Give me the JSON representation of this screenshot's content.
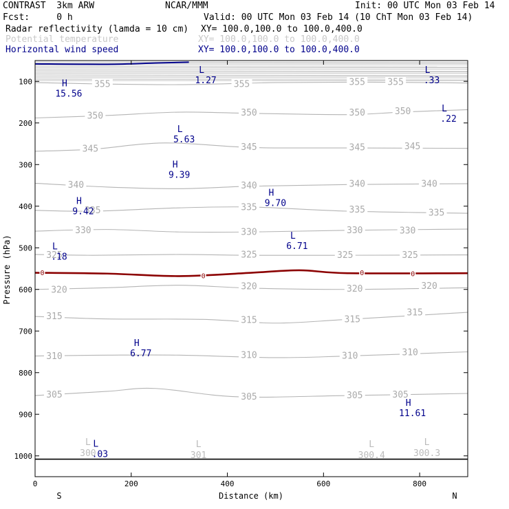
{
  "header": {
    "title": "CONTRAST  3km ARW",
    "center": "NCAR/MMM",
    "init": "Init: 00 UTC Mon 03 Feb 14",
    "fcst": "Fcst:     0 h",
    "valid": "Valid: 00 UTC Mon 03 Feb 14 (10 ChT Mon 03 Feb 14)",
    "fields": [
      {
        "name": "Radar reflectivity (lamda = 10 cm)",
        "xy": "XY= 100.0,100.0 to 100.0,400.0",
        "color": "#000000"
      },
      {
        "name": "Potential temperature",
        "xy": "XY= 100.0,100.0 to 100.0,400.0",
        "color": "#c8c8c8"
      },
      {
        "name": "Horizontal wind speed",
        "xy": "XY= 100.0,100.0 to 100.0,400.0",
        "color": "#00008b"
      }
    ]
  },
  "chart_data": {
    "type": "line",
    "subtype": "vertical cross-section contour",
    "xlabel": "Distance (km)",
    "ylabel": "Pressure (hPa)",
    "xlim": [
      0,
      900
    ],
    "ylim": [
      1050,
      50
    ],
    "x_ticks": [
      0,
      200,
      400,
      600,
      800
    ],
    "x_tick_labels": [
      "0",
      "200",
      "400",
      "600",
      "800"
    ],
    "y_ticks": [
      100,
      200,
      300,
      400,
      500,
      600,
      700,
      800,
      900,
      1000
    ],
    "y_tick_labels": [
      "100",
      "200",
      "300",
      "400",
      "500",
      "600",
      "700",
      "800",
      "900",
      "1000"
    ],
    "endpoints": {
      "left": "S",
      "right": "N"
    },
    "theta_lines": [
      {
        "label": "355",
        "points": [
          [
            0,
            103
          ],
          [
            120,
            106
          ],
          [
            300,
            108
          ],
          [
            500,
            103
          ],
          [
            700,
            102
          ],
          [
            900,
            104
          ]
        ],
        "label_pos": [
          [
            140,
            107
          ],
          [
            430,
            107
          ],
          [
            670,
            102
          ],
          [
            750,
            102
          ]
        ]
      },
      {
        "label": "350",
        "points": [
          [
            0,
            188
          ],
          [
            150,
            182
          ],
          [
            300,
            174
          ],
          [
            450,
            177
          ],
          [
            650,
            180
          ],
          [
            760,
            174
          ],
          [
            900,
            168
          ]
        ],
        "label_pos": [
          [
            125,
            183
          ],
          [
            445,
            176
          ],
          [
            670,
            176
          ],
          [
            765,
            172
          ]
        ]
      },
      {
        "label": "345",
        "points": [
          [
            0,
            268
          ],
          [
            120,
            263
          ],
          [
            270,
            248
          ],
          [
            450,
            259
          ],
          [
            650,
            260
          ],
          [
            900,
            261
          ]
        ],
        "label_pos": [
          [
            115,
            262
          ],
          [
            445,
            258
          ],
          [
            670,
            259
          ],
          [
            785,
            257
          ]
        ]
      },
      {
        "label": "340",
        "points": [
          [
            0,
            345
          ],
          [
            150,
            354
          ],
          [
            300,
            358
          ],
          [
            450,
            352
          ],
          [
            650,
            348
          ],
          [
            900,
            346
          ]
        ],
        "label_pos": [
          [
            85,
            349
          ],
          [
            445,
            351
          ],
          [
            670,
            347
          ],
          [
            820,
            347
          ]
        ]
      },
      {
        "label": "335",
        "points": [
          [
            0,
            410
          ],
          [
            120,
            412
          ],
          [
            300,
            404
          ],
          [
            450,
            402
          ],
          [
            650,
            412
          ],
          [
            900,
            417
          ]
        ],
        "label_pos": [
          [
            120,
            410
          ],
          [
            445,
            403
          ],
          [
            670,
            409
          ],
          [
            835,
            416
          ]
        ]
      },
      {
        "label": "330",
        "points": [
          [
            0,
            460
          ],
          [
            150,
            456
          ],
          [
            300,
            462
          ],
          [
            450,
            462
          ],
          [
            650,
            458
          ],
          [
            900,
            455
          ]
        ],
        "label_pos": [
          [
            100,
            458
          ],
          [
            445,
            462
          ],
          [
            665,
            458
          ],
          [
            775,
            459
          ]
        ]
      },
      {
        "label": "325",
        "points": [
          [
            0,
            516
          ],
          [
            120,
            518
          ],
          [
            300,
            516
          ],
          [
            450,
            518
          ],
          [
            650,
            518
          ],
          [
            900,
            517
          ]
        ],
        "label_pos": [
          [
            40,
            518
          ],
          [
            445,
            517
          ],
          [
            645,
            518
          ],
          [
            780,
            518
          ]
        ]
      },
      {
        "label": "320",
        "points": [
          [
            0,
            600
          ],
          [
            150,
            596
          ],
          [
            300,
            590
          ],
          [
            450,
            597
          ],
          [
            650,
            600
          ],
          [
            900,
            596
          ]
        ],
        "label_pos": [
          [
            50,
            601
          ],
          [
            445,
            593
          ],
          [
            665,
            599
          ],
          [
            820,
            592
          ]
        ]
      },
      {
        "label": "315",
        "points": [
          [
            0,
            665
          ],
          [
            150,
            671
          ],
          [
            350,
            672
          ],
          [
            500,
            681
          ],
          [
            650,
            672
          ],
          [
            900,
            655
          ]
        ],
        "label_pos": [
          [
            40,
            665
          ],
          [
            445,
            674
          ],
          [
            660,
            672
          ],
          [
            790,
            656
          ]
        ]
      },
      {
        "label": "310",
        "points": [
          [
            0,
            760
          ],
          [
            150,
            758
          ],
          [
            300,
            758
          ],
          [
            500,
            764
          ],
          [
            650,
            760
          ],
          [
            900,
            750
          ]
        ],
        "label_pos": [
          [
            40,
            761
          ],
          [
            445,
            758
          ],
          [
            655,
            760
          ],
          [
            780,
            752
          ]
        ]
      },
      {
        "label": "305",
        "points": [
          [
            0,
            855
          ],
          [
            150,
            845
          ],
          [
            250,
            838
          ],
          [
            420,
            858
          ],
          [
            650,
            855
          ],
          [
            900,
            850
          ]
        ],
        "label_pos": [
          [
            40,
            853
          ],
          [
            445,
            858
          ],
          [
            665,
            855
          ],
          [
            760,
            853
          ]
        ]
      }
    ],
    "ground_line": {
      "pressure": 1008
    },
    "reflectivity_zero_line": {
      "label": "0",
      "points": [
        [
          0,
          560
        ],
        [
          150,
          562
        ],
        [
          300,
          568
        ],
        [
          450,
          560
        ],
        [
          550,
          554
        ],
        [
          650,
          561
        ],
        [
          900,
          561
        ]
      ],
      "label_pos": [
        [
          15,
          560
        ],
        [
          350,
          567
        ],
        [
          680,
          560
        ],
        [
          786,
          562
        ]
      ]
    },
    "wind_top_line": {
      "points": [
        [
          0,
          58
        ],
        [
          150,
          59
        ],
        [
          250,
          56
        ],
        [
          320,
          54
        ]
      ]
    },
    "wind_extrema": [
      {
        "type": "H",
        "value": "15.56",
        "x": 70,
        "p": 112
      },
      {
        "type": "L",
        "value": "1.27",
        "x": 355,
        "p": 80
      },
      {
        "type": "L",
        "value": ".33",
        "x": 825,
        "p": 80
      },
      {
        "type": "L",
        "value": ".22",
        "x": 860,
        "p": 172
      },
      {
        "type": "L",
        "value": "5.63",
        "x": 310,
        "p": 222
      },
      {
        "type": "H",
        "value": "9.39",
        "x": 300,
        "p": 307
      },
      {
        "type": "H",
        "value": "9.70",
        "x": 500,
        "p": 375
      },
      {
        "type": "H",
        "value": "9.42",
        "x": 100,
        "p": 395
      },
      {
        "type": "L",
        "value": "6.71",
        "x": 545,
        "p": 478
      },
      {
        "type": "L",
        "value": ".18",
        "x": 50,
        "p": 504
      },
      {
        "type": "H",
        "value": "6.77",
        "x": 220,
        "p": 736
      },
      {
        "type": "H",
        "value": "11.61",
        "x": 785,
        "p": 880
      },
      {
        "type": "L",
        "value": ".03",
        "x": 135,
        "p": 978
      }
    ],
    "theta_extrema": [
      {
        "type": "L",
        "value": "300",
        "x": 110,
        "p": 1000
      },
      {
        "type": "L",
        "value": "301",
        "x": 340,
        "p": 1005
      },
      {
        "type": "L",
        "value": "300.4",
        "x": 700,
        "p": 1005
      },
      {
        "type": "L",
        "value": "300.3",
        "x": 815,
        "p": 1000
      }
    ]
  }
}
